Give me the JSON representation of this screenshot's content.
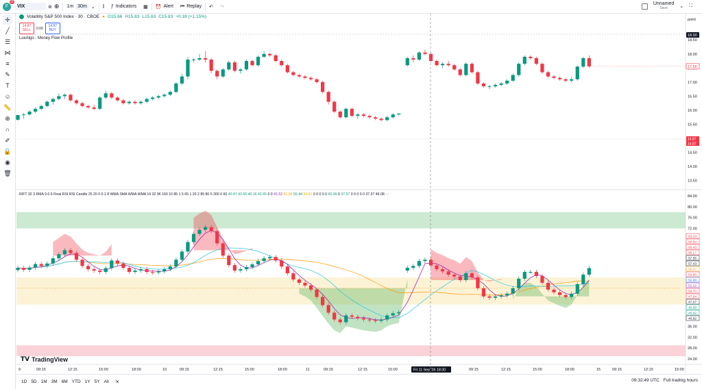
{
  "header": {
    "avatar_letter": "F",
    "avatar_badge": "11",
    "symbol": "VIX",
    "intervals": [
      "1m",
      "30m"
    ],
    "active_interval": "30m",
    "indicators_label": "Indicators",
    "alert_label": "Alert",
    "replay_label": "Replay",
    "layout_name": "Unnamed",
    "layout_status": "Save"
  },
  "legend": {
    "title": "Volatility S&P 500 Index · 30 · CBOE",
    "open": "O15.66",
    "high": "H15.83",
    "low": "L15.63",
    "close": "C15.83",
    "change": "+0.18 (+1.15%)",
    "sell_price": "14.87",
    "sell_label": "SELL",
    "spread": "0.00",
    "buy_price": "14.87",
    "buy_label": "BUY",
    "indicator_name": "LuxAlgo - Money Flow Profile"
  },
  "rift_legend": {
    "params": "RIFT 32 3 RMA 9 0.5 Final RSI RSI Candle 25 20 0 0.1 8 WMA SMA WMA WMA 16 32 96 160 10 85 1 5 65 1 20 2 85 80 5 300 0 60",
    "values": [
      {
        "v": "40.47",
        "c": "g"
      },
      {
        "v": "42.65",
        "c": "g"
      },
      {
        "v": "40.16",
        "c": "g"
      },
      {
        "v": "42.65",
        "c": "g"
      },
      {
        "v": "0",
        "c": ""
      },
      {
        "v": "0",
        "c": ""
      },
      {
        "v": "41.52",
        "c": "p"
      },
      {
        "v": "51.00",
        "c": "y"
      },
      {
        "v": "55.44",
        "c": "g"
      },
      {
        "v": "54.61",
        "c": "y"
      },
      {
        "v": "0",
        "c": ""
      },
      {
        "v": "0",
        "c": ""
      },
      {
        "v": "0",
        "c": ""
      },
      {
        "v": "0",
        "c": ""
      },
      {
        "v": "0",
        "c": ""
      },
      {
        "v": "60.99",
        "c": "g"
      },
      {
        "v": "0",
        "c": ""
      },
      {
        "v": "37.37",
        "c": "g"
      },
      {
        "v": "0",
        "c": ""
      },
      {
        "v": "0",
        "c": ""
      },
      {
        "v": "0",
        "c": ""
      },
      {
        "v": "0",
        "c": ""
      },
      {
        "v": "0",
        "c": ""
      },
      {
        "v": "37.37",
        "c": ""
      },
      {
        "v": "46.08",
        "c": ""
      }
    ],
    "more": "···"
  },
  "price_axis": {
    "unit_label": "point",
    "ticks": [
      "18.50",
      "18.00",
      "17.50",
      "17.00",
      "16.50",
      "16.00",
      "15.50",
      "15.00",
      "14.50",
      "14.00",
      "13.50"
    ],
    "last_price_tag": "17.56",
    "crosshair_price_tag": "18.90",
    "bid_tag": "14.87",
    "ask_tag": "14.87"
  },
  "osc_axis": {
    "ticks": [
      "84.00",
      "80.00",
      "76.00",
      "72.00",
      "36.00",
      "32.00",
      "28.00",
      "24.00"
    ],
    "value_tags": [
      {
        "v": "63.23",
        "c": "#f23645"
      },
      {
        "v": "60.84",
        "c": "#f23645"
      },
      {
        "v": "60.43",
        "c": "#f23645"
      },
      {
        "v": "58.17",
        "c": "#f23645"
      },
      {
        "v": "57.55",
        "c": "#131722"
      },
      {
        "v": "57.43",
        "c": "#131722"
      },
      {
        "v": "56.97",
        "c": "#ff9800"
      },
      {
        "v": "54.60",
        "c": "#f23645"
      },
      {
        "v": "52.68",
        "c": "#2962ff"
      },
      {
        "v": "52.22",
        "c": "#9c27b0"
      },
      {
        "v": "50.70",
        "c": "#f23645"
      },
      {
        "v": "47.94",
        "c": "#f23645"
      },
      {
        "v": "47.07",
        "c": "#131722"
      },
      {
        "v": "46.99",
        "c": "#089981"
      },
      {
        "v": "46.92",
        "c": "#089981"
      },
      {
        "v": "46.92",
        "c": "#131722"
      }
    ]
  },
  "time_axis": {
    "labels": [
      "9",
      "09:15",
      "12:15",
      "15:00",
      "18:00",
      "10",
      "09:15",
      "12:15",
      "15:00",
      "18:00",
      "11",
      "09:15",
      "12:15",
      "15:00",
      "4",
      "09:15",
      "12:15",
      "15:00",
      "18:00",
      "15",
      "09:15",
      "12:15",
      "15:00"
    ],
    "crosshair_label": "Fri 11 Sep '26   18:30"
  },
  "branding": {
    "logo_text": "TradingView"
  },
  "bottom": {
    "ranges": [
      "1D",
      "5D",
      "1M",
      "3M",
      "6M",
      "YTD",
      "1Y",
      "5Y",
      "All"
    ],
    "clock": "09:32:49 UTC",
    "session": "Full trading hours"
  },
  "colors": {
    "up": "#089981",
    "down": "#f23645",
    "upper_band": "#b7dfbf",
    "lower_band": "#f8c8cf",
    "mid_band": "#fbefc9"
  },
  "chart_data": {
    "type": "candlestick",
    "candles_y_range": [
      13.2,
      18.7
    ],
    "candles": [
      [
        15.66,
        15.83,
        15.63,
        15.83
      ],
      [
        15.83,
        15.9,
        15.7,
        15.85
      ],
      [
        15.85,
        16.0,
        15.8,
        15.95
      ],
      [
        15.95,
        16.1,
        15.9,
        16.05
      ],
      [
        16.05,
        16.2,
        16.0,
        16.15
      ],
      [
        16.15,
        16.35,
        16.1,
        16.3
      ],
      [
        16.3,
        16.45,
        16.2,
        16.4
      ],
      [
        16.4,
        16.6,
        16.35,
        16.5
      ],
      [
        16.5,
        16.6,
        16.4,
        16.55
      ],
      [
        16.55,
        16.6,
        16.3,
        16.35
      ],
      [
        16.35,
        16.4,
        16.2,
        16.25
      ],
      [
        16.25,
        16.3,
        16.1,
        16.15
      ],
      [
        16.15,
        16.2,
        16.05,
        16.1
      ],
      [
        16.1,
        16.2,
        16.0,
        16.05
      ],
      [
        16.05,
        16.5,
        16.0,
        16.45
      ],
      [
        16.45,
        16.7,
        16.4,
        16.6
      ],
      [
        16.6,
        16.65,
        16.4,
        16.45
      ],
      [
        16.45,
        16.5,
        16.3,
        16.35
      ],
      [
        16.35,
        16.4,
        16.2,
        16.25
      ],
      [
        16.25,
        16.35,
        16.2,
        16.3
      ],
      [
        16.3,
        16.35,
        16.2,
        16.25
      ],
      [
        16.25,
        16.35,
        16.2,
        16.3
      ],
      [
        16.3,
        16.45,
        16.25,
        16.4
      ],
      [
        16.4,
        16.5,
        16.35,
        16.45
      ],
      [
        16.45,
        16.55,
        16.4,
        16.5
      ],
      [
        16.5,
        16.6,
        16.45,
        16.55
      ],
      [
        16.55,
        16.7,
        16.5,
        16.65
      ],
      [
        16.65,
        17.0,
        16.6,
        16.95
      ],
      [
        16.95,
        17.3,
        16.9,
        17.2
      ],
      [
        17.2,
        17.9,
        17.1,
        17.8
      ],
      [
        17.8,
        17.85,
        17.7,
        17.8
      ],
      [
        17.8,
        18.0,
        17.75,
        17.85
      ],
      [
        17.85,
        18.1,
        17.7,
        17.8
      ],
      [
        17.8,
        17.85,
        17.3,
        17.4
      ],
      [
        17.4,
        17.45,
        17.1,
        17.2
      ],
      [
        17.2,
        17.5,
        17.15,
        17.45
      ],
      [
        17.45,
        17.75,
        17.4,
        17.7
      ],
      [
        17.7,
        17.75,
        17.35,
        17.4
      ],
      [
        17.4,
        17.5,
        17.3,
        17.45
      ],
      [
        17.45,
        17.8,
        17.4,
        17.75
      ],
      [
        17.75,
        17.8,
        17.55,
        17.6
      ],
      [
        17.6,
        17.95,
        17.55,
        17.9
      ],
      [
        17.9,
        18.1,
        17.85,
        18.0
      ],
      [
        18.0,
        18.05,
        17.9,
        17.95
      ],
      [
        17.95,
        18.0,
        17.7,
        17.75
      ],
      [
        17.75,
        17.8,
        17.55,
        17.6
      ],
      [
        17.6,
        17.65,
        17.3,
        17.35
      ],
      [
        17.35,
        17.4,
        17.2,
        17.25
      ],
      [
        17.25,
        17.3,
        17.15,
        17.2
      ],
      [
        17.2,
        17.25,
        17.1,
        17.15
      ],
      [
        17.15,
        17.2,
        17.05,
        17.1
      ],
      [
        17.1,
        17.15,
        16.95,
        17.0
      ],
      [
        17.0,
        17.05,
        16.6,
        16.65
      ],
      [
        16.65,
        16.7,
        16.2,
        16.3
      ],
      [
        16.3,
        16.35,
        15.9,
        15.95
      ],
      [
        15.95,
        16.0,
        15.7,
        15.75
      ],
      [
        15.75,
        16.1,
        15.7,
        16.05
      ],
      [
        16.05,
        16.1,
        15.75,
        15.8
      ],
      [
        15.8,
        15.9,
        15.7,
        15.85
      ],
      [
        15.85,
        15.9,
        15.75,
        15.8
      ],
      [
        15.8,
        15.85,
        15.7,
        15.75
      ],
      [
        15.75,
        15.8,
        15.65,
        15.7
      ],
      [
        15.7,
        15.75,
        15.6,
        15.65
      ],
      [
        15.65,
        15.8,
        15.6,
        15.75
      ],
      [
        15.75,
        15.9,
        15.7,
        15.85
      ],
      [
        15.85,
        15.9,
        15.8,
        15.88
      ],
      [
        17.6,
        17.9,
        17.55,
        17.85
      ],
      [
        17.85,
        17.95,
        17.7,
        17.8
      ],
      [
        17.8,
        18.1,
        17.75,
        18.05
      ],
      [
        18.05,
        18.15,
        17.95,
        18.0
      ],
      [
        18.0,
        18.05,
        17.7,
        17.75
      ],
      [
        17.75,
        17.8,
        17.55,
        17.6
      ],
      [
        17.6,
        17.7,
        17.5,
        17.65
      ],
      [
        17.65,
        17.75,
        17.55,
        17.6
      ],
      [
        17.6,
        17.65,
        17.4,
        17.45
      ],
      [
        17.45,
        17.5,
        17.2,
        17.25
      ],
      [
        17.25,
        17.7,
        17.2,
        17.65
      ],
      [
        17.65,
        17.7,
        17.3,
        17.35
      ],
      [
        17.35,
        17.4,
        16.9,
        16.95
      ],
      [
        16.95,
        17.0,
        16.8,
        16.85
      ],
      [
        16.85,
        16.9,
        16.75,
        16.85
      ],
      [
        16.85,
        16.95,
        16.8,
        16.9
      ],
      [
        16.9,
        17.0,
        16.85,
        16.95
      ],
      [
        16.95,
        17.1,
        16.9,
        17.05
      ],
      [
        17.05,
        17.3,
        17.0,
        17.25
      ],
      [
        17.25,
        17.7,
        17.2,
        17.65
      ],
      [
        17.65,
        17.95,
        17.6,
        17.9
      ],
      [
        17.9,
        17.95,
        17.8,
        17.85
      ],
      [
        17.85,
        17.9,
        17.6,
        17.65
      ],
      [
        17.65,
        17.7,
        17.3,
        17.35
      ],
      [
        17.35,
        17.4,
        17.15,
        17.2
      ],
      [
        17.2,
        17.25,
        17.1,
        17.15
      ],
      [
        17.15,
        17.2,
        17.05,
        17.1
      ],
      [
        17.1,
        17.15,
        17.0,
        17.05
      ],
      [
        17.05,
        17.2,
        17.0,
        17.1
      ],
      [
        17.1,
        17.6,
        17.05,
        17.55
      ],
      [
        17.55,
        17.9,
        17.5,
        17.85
      ],
      [
        17.85,
        17.95,
        17.5,
        17.56
      ]
    ],
    "gap_after_index": 65,
    "oscillator_y_range": [
      22,
      86
    ],
    "oscillator_bands": {
      "upper": [
        72,
        78
      ],
      "mid": [
        44,
        54
      ],
      "lower": [
        25,
        29
      ]
    },
    "oscillator_values": [
      57.5,
      56.8,
      57.6,
      58.9,
      58.2,
      59.1,
      61.0,
      62.5,
      64.0,
      63.0,
      60.5,
      58.2,
      57.0,
      56.5,
      56.0,
      57.4,
      60.2,
      59.1,
      57.5,
      56.0,
      56.5,
      57.0,
      56.0,
      55.8,
      56.2,
      57.0,
      58.0,
      60.5,
      63.5,
      67.0,
      70.0,
      71.5,
      72.5,
      71.0,
      66.5,
      62.0,
      58.5,
      56.5,
      57.0,
      57.8,
      58.8,
      60.0,
      61.0,
      61.5,
      60.2,
      58.0,
      55.5,
      53.2,
      52.0,
      51.0,
      49.5,
      46.8,
      43.8,
      41.0,
      38.5,
      37.5,
      40.0,
      39.5,
      39.0,
      38.5,
      38.2,
      38.0,
      38.5,
      40.0,
      40.8,
      41.2,
      57.5,
      58.2,
      60.0,
      60.5,
      58.4,
      57.0,
      56.2,
      55.0,
      54.3,
      53.0,
      55.5,
      54.0,
      50.0,
      47.0,
      46.5,
      47.0,
      47.4,
      48.0,
      50.0,
      53.5,
      56.0,
      56.0,
      54.5,
      52.0,
      49.5,
      48.5,
      47.5,
      46.8,
      48.0,
      51.5,
      55.0,
      57.4
    ]
  }
}
